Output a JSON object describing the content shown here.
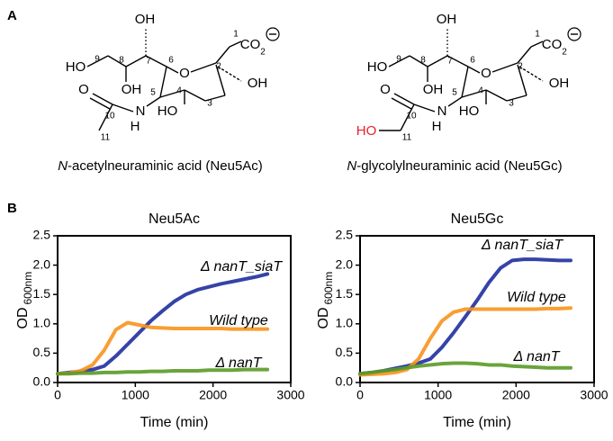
{
  "panel_a": {
    "label": "A",
    "structures": [
      {
        "labels": [
          "HO",
          "9",
          "8",
          "7",
          "6",
          "OH",
          "OH",
          "O",
          "2",
          "1",
          "CO",
          "2",
          "OH",
          "5",
          "4",
          "3",
          "HO",
          "N",
          "H",
          "O",
          "10",
          "11"
        ],
        "caption_prefix": "N",
        "caption": "-acetylneuraminic acid (Neu5Ac)"
      },
      {
        "labels": [
          "HO",
          "9",
          "8",
          "7",
          "6",
          "OH",
          "OH",
          "O",
          "2",
          "1",
          "CO",
          "2",
          "OH",
          "5",
          "4",
          "3",
          "HO",
          "N",
          "H",
          "O",
          "10",
          "11",
          "HO"
        ],
        "caption_prefix": "N",
        "caption": "-glycolylneuraminic acid (Neu5Gc)"
      }
    ]
  },
  "panel_b": {
    "label": "B"
  },
  "chart_data": [
    {
      "type": "line",
      "title": "Neu5Ac",
      "xlabel": "Time (min)",
      "ylabel": "OD",
      "ylabel_sub": "600nm",
      "x": [
        0,
        150,
        300,
        450,
        600,
        750,
        900,
        1050,
        1200,
        1350,
        1500,
        1650,
        1800,
        1950,
        2100,
        2250,
        2400,
        2550,
        2700
      ],
      "series": [
        {
          "name": "Δ nanT_siaT",
          "color": "#1f2f9e",
          "values": [
            0.15,
            0.17,
            0.19,
            0.22,
            0.28,
            0.45,
            0.65,
            0.85,
            1.05,
            1.22,
            1.38,
            1.5,
            1.58,
            1.63,
            1.68,
            1.72,
            1.76,
            1.8,
            1.85
          ]
        },
        {
          "name": "Wild type",
          "color": "#f7941d",
          "values": [
            0.15,
            0.16,
            0.2,
            0.3,
            0.55,
            0.9,
            1.02,
            0.98,
            0.94,
            0.93,
            0.92,
            0.92,
            0.92,
            0.92,
            0.92,
            0.91,
            0.91,
            0.91,
            0.91
          ]
        },
        {
          "name": "Δ nanT",
          "color": "#5a9a28",
          "values": [
            0.15,
            0.15,
            0.16,
            0.16,
            0.17,
            0.17,
            0.18,
            0.18,
            0.19,
            0.19,
            0.2,
            0.2,
            0.2,
            0.21,
            0.21,
            0.21,
            0.22,
            0.22,
            0.22
          ]
        }
      ],
      "xlim": [
        0,
        3000
      ],
      "xticks": [
        0,
        1000,
        2000,
        3000
      ],
      "ylim": [
        0,
        2.5
      ],
      "yticks": [
        {
          "value": 0,
          "label": "0.0"
        },
        0.5,
        {
          "value": 1,
          "label": "1.0"
        },
        1.5,
        {
          "value": 2,
          "label": "2.0"
        },
        2.5
      ]
    },
    {
      "type": "line",
      "title": "Neu5Gc",
      "xlabel": "Time (min)",
      "ylabel": "OD",
      "ylabel_sub": "600nm",
      "x": [
        0,
        150,
        300,
        450,
        600,
        750,
        900,
        1050,
        1200,
        1350,
        1500,
        1650,
        1800,
        1950,
        2100,
        2250,
        2400,
        2550,
        2700
      ],
      "series": [
        {
          "name": "Δ nanT_siaT",
          "color": "#1f2f9e",
          "values": [
            0.15,
            0.17,
            0.2,
            0.24,
            0.28,
            0.33,
            0.4,
            0.6,
            0.85,
            1.12,
            1.4,
            1.7,
            1.95,
            2.08,
            2.1,
            2.1,
            2.09,
            2.08,
            2.08
          ]
        },
        {
          "name": "Wild type",
          "color": "#f7941d",
          "values": [
            0.13,
            0.14,
            0.15,
            0.17,
            0.22,
            0.4,
            0.75,
            1.05,
            1.2,
            1.25,
            1.25,
            1.25,
            1.25,
            1.25,
            1.25,
            1.25,
            1.26,
            1.26,
            1.27
          ]
        },
        {
          "name": "Δ nanT",
          "color": "#5a9a28",
          "values": [
            0.15,
            0.17,
            0.2,
            0.22,
            0.25,
            0.28,
            0.3,
            0.32,
            0.33,
            0.33,
            0.32,
            0.3,
            0.3,
            0.28,
            0.27,
            0.26,
            0.25,
            0.25,
            0.25
          ]
        }
      ],
      "xlim": [
        0,
        3000
      ],
      "xticks": [
        0,
        1000,
        2000,
        3000
      ],
      "ylim": [
        0,
        2.5
      ],
      "yticks": [
        {
          "value": 0,
          "label": "0.0"
        },
        0.5,
        {
          "value": 1,
          "label": "1.0"
        },
        1.5,
        {
          "value": 2,
          "label": "2.0"
        },
        2.5
      ]
    }
  ]
}
